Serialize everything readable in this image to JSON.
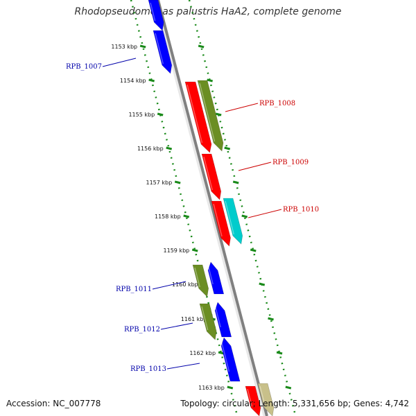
{
  "title": "Rhodopseudomonas palustris HaA2, complete genome",
  "footer": {
    "accession": "Accession: NC_007778",
    "summary": "Topology: circular; Length: 5,331,656 bp; Genes: 4,742"
  },
  "colors": {
    "backbone": "#808080",
    "tick": "#1a8a1a",
    "label_forward": "#cc0000",
    "label_reverse": "#0000aa",
    "gene_red": "#ff0000",
    "gene_blue": "#0000ff",
    "gene_olive": "#6b8e23",
    "gene_cyan": "#00cccc",
    "gene_khaki": "#c8c08a"
  },
  "ticks": [
    {
      "label": "1153 kbp"
    },
    {
      "label": "1154 kbp"
    },
    {
      "label": "1155 kbp"
    },
    {
      "label": "1156 kbp"
    },
    {
      "label": "1157 kbp"
    },
    {
      "label": "1158 kbp"
    },
    {
      "label": "1159 kbp"
    },
    {
      "label": "1160 kbp"
    },
    {
      "label": "1161 kbp"
    },
    {
      "label": "1162 kbp"
    },
    {
      "label": "1163 kbp"
    }
  ],
  "gene_labels": [
    {
      "name": "RPB_1007",
      "strand": "reverse"
    },
    {
      "name": "RPB_1008",
      "strand": "forward"
    },
    {
      "name": "RPB_1009",
      "strand": "forward"
    },
    {
      "name": "RPB_1010",
      "strand": "forward"
    },
    {
      "name": "RPB_1011",
      "strand": "reverse"
    },
    {
      "name": "RPB_1012",
      "strand": "reverse"
    },
    {
      "name": "RPB_1013",
      "strand": "reverse"
    }
  ]
}
